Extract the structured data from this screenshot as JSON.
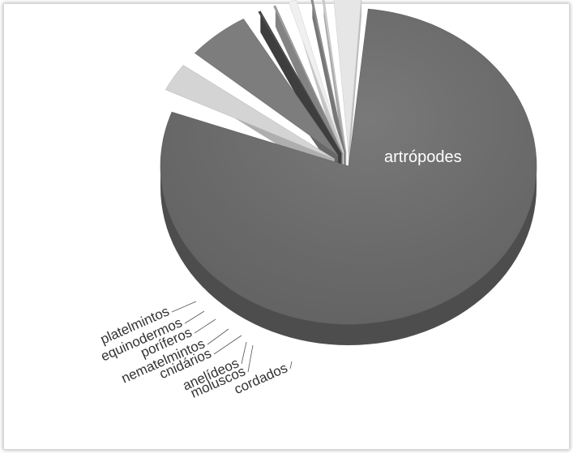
{
  "chart_data": {
    "type": "pie",
    "style": "3d-exploded",
    "title": "",
    "slices": [
      {
        "label": "artrópodes",
        "value": 80.0,
        "color": "#6b6b6b"
      },
      {
        "label": "cordados",
        "value": 4.0,
        "color": "#d4d4d4"
      },
      {
        "label": "moluscos",
        "value": 6.5,
        "color": "#7d7d7d"
      },
      {
        "label": "anelídeos",
        "value": 1.3,
        "color": "#4c4c4c"
      },
      {
        "label": "cnidários",
        "value": 1.2,
        "color": "#a0a0a0"
      },
      {
        "label": "nematelmintos",
        "value": 1.8,
        "color": "#f0f0f0"
      },
      {
        "label": "poríferos",
        "value": 0.9,
        "color": "#909090"
      },
      {
        "label": "equinodermos",
        "value": 0.8,
        "color": "#cfcfcf"
      },
      {
        "label": "platelmintos",
        "value": 3.5,
        "color": "#e6e6e6"
      }
    ]
  }
}
